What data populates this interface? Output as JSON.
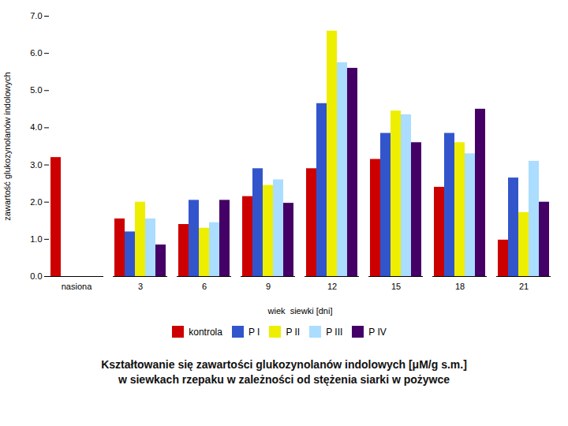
{
  "chart_data": {
    "type": "bar",
    "title": "Kształtowanie się zawartości  glukozynolanów indolowych [μM/g s.m.]",
    "subtitle": "w siewkach rzepaku w zależności od stężenia siarki w pożywce",
    "xlabel": "wiek  siewki [dni]",
    "ylabel": "zawartość glukozynolanów indolowych",
    "categories": [
      "nasiona",
      "3",
      "6",
      "9",
      "12",
      "15",
      "18",
      "21"
    ],
    "series": [
      {
        "name": "kontrola",
        "color": "#cc0000",
        "values": [
          3.2,
          1.55,
          1.4,
          2.15,
          2.9,
          3.15,
          2.4,
          0.98
        ]
      },
      {
        "name": "P I",
        "color": "#3355cc",
        "values": [
          0.0,
          1.2,
          2.05,
          2.9,
          4.65,
          3.85,
          3.85,
          2.65
        ]
      },
      {
        "name": "P II",
        "color": "#eeee00",
        "values": [
          0.0,
          2.0,
          1.3,
          2.45,
          6.6,
          4.45,
          3.6,
          1.72
        ]
      },
      {
        "name": "P III",
        "color": "#aaddff",
        "values": [
          0.0,
          1.55,
          1.45,
          2.6,
          5.75,
          4.35,
          3.3,
          3.1
        ]
      },
      {
        "name": "P IV",
        "color": "#440066",
        "values": [
          0.0,
          0.85,
          2.05,
          1.97,
          5.6,
          3.6,
          4.5,
          2.0
        ]
      }
    ],
    "ylim": [
      0,
      7
    ],
    "yticks": [
      0,
      1,
      2,
      3,
      4,
      5,
      6,
      7
    ],
    "grid": false,
    "legend": "bottom"
  }
}
